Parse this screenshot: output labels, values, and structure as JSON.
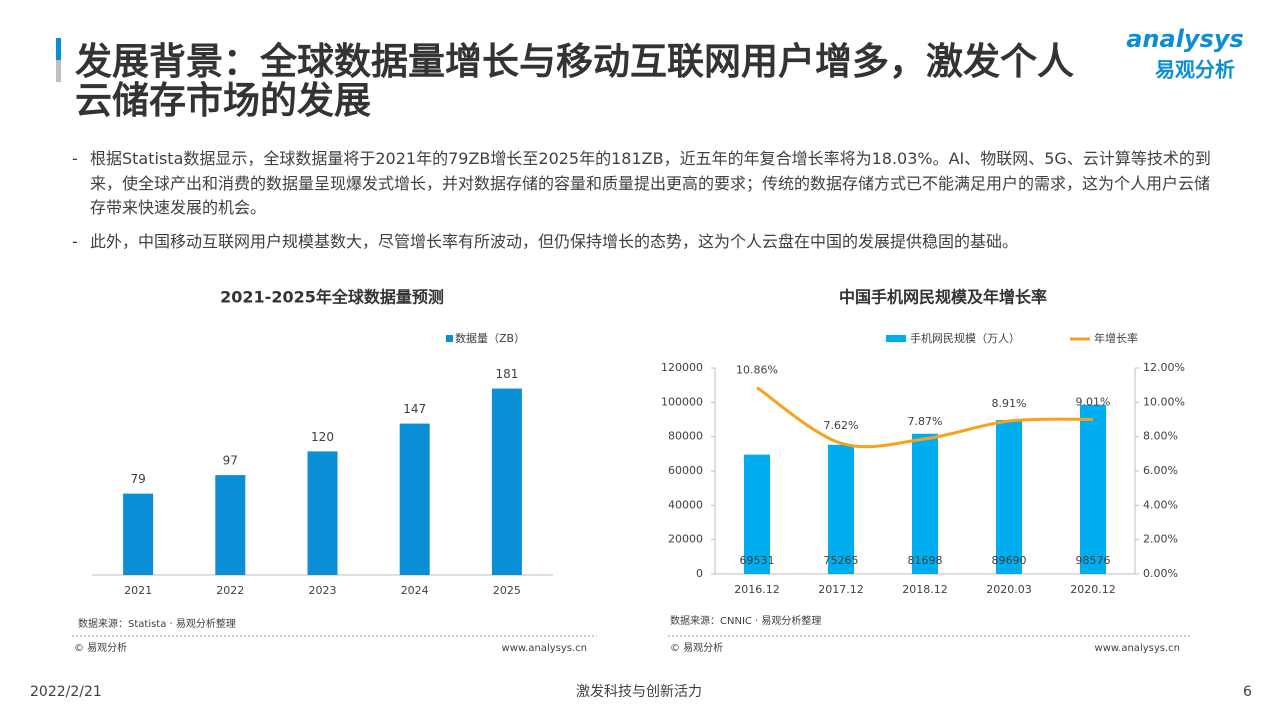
{
  "header": {
    "title": "发展背景：全球数据量增长与移动互联网用户增多，激发个人云储存市场的发展"
  },
  "logo": {
    "brand": "analysys",
    "name": "易观分析"
  },
  "bullets": [
    "根据Statista数据显示，全球数据量将于2021年的79ZB增长至2025年的181ZB，近五年的年复合增长率将为18.03%。AI、物联网、5G、云计算等技术的到来，使全球产出和消费的数据量呈现爆发式增长，并对数据存储的容量和质量提出更高的要求；传统的数据存储方式已不能满足用户的需求，这为个人用户云储存带来快速发展的机会。",
    "此外，中国移动互联网用户规模基数大，尽管增长率有所波动，但仍保持增长的态势，这为个人云盘在中国的发展提供稳固的基础。"
  ],
  "chart_data": [
    {
      "type": "bar",
      "title": "2021-2025年全球数据量预测",
      "categories": [
        "2021",
        "2022",
        "2023",
        "2024",
        "2025"
      ],
      "series": [
        {
          "name": "数据量（ZB）",
          "color": "#0a8fd6",
          "values": [
            79,
            97,
            120,
            147,
            181
          ]
        }
      ],
      "ylim": [
        0,
        200
      ],
      "legend": "top-right",
      "source": "数据来源：Statista · 易观分析整理",
      "copyright": "© 易观分析",
      "website": "www.analysys.cn"
    },
    {
      "type": "combo",
      "title": "中国手机网民规模及年增长率",
      "categories": [
        "2016.12",
        "2017.12",
        "2018.12",
        "2020.03",
        "2020.12"
      ],
      "series": [
        {
          "name": "手机网民规模（万人）",
          "type": "bar",
          "color": "#00aeef",
          "values": [
            69531,
            75265,
            81698,
            89690,
            98576
          ]
        },
        {
          "name": "年增长率",
          "type": "line",
          "axis": "y2",
          "color": "#f7a21b",
          "values": [
            10.86,
            7.62,
            7.87,
            8.91,
            9.01
          ],
          "value_labels": [
            "10.86%",
            "7.62%",
            "7.87%",
            "8.91%",
            "9.01%"
          ]
        }
      ],
      "ylim": [
        0,
        120000
      ],
      "yticks": [
        0,
        20000,
        40000,
        60000,
        80000,
        100000,
        120000
      ],
      "y2lim": [
        0,
        12
      ],
      "y2ticks": [
        {
          "value": 0,
          "label": "0.00%"
        },
        {
          "value": 2,
          "label": "2.00%"
        },
        {
          "value": 4,
          "label": "4.00%"
        },
        {
          "value": 6,
          "label": "6.00%"
        },
        {
          "value": 8,
          "label": "8.00%"
        },
        {
          "value": 10,
          "label": "10.00%"
        },
        {
          "value": 12,
          "label": "12.00%"
        }
      ],
      "legend": "top",
      "source": "数据来源：CNNIC · 易观分析整理",
      "copyright": "© 易观分析",
      "website": "www.analysys.cn"
    }
  ],
  "footer": {
    "date": "2022/2/21",
    "slogan": "激发科技与创新活力",
    "page": "6"
  }
}
